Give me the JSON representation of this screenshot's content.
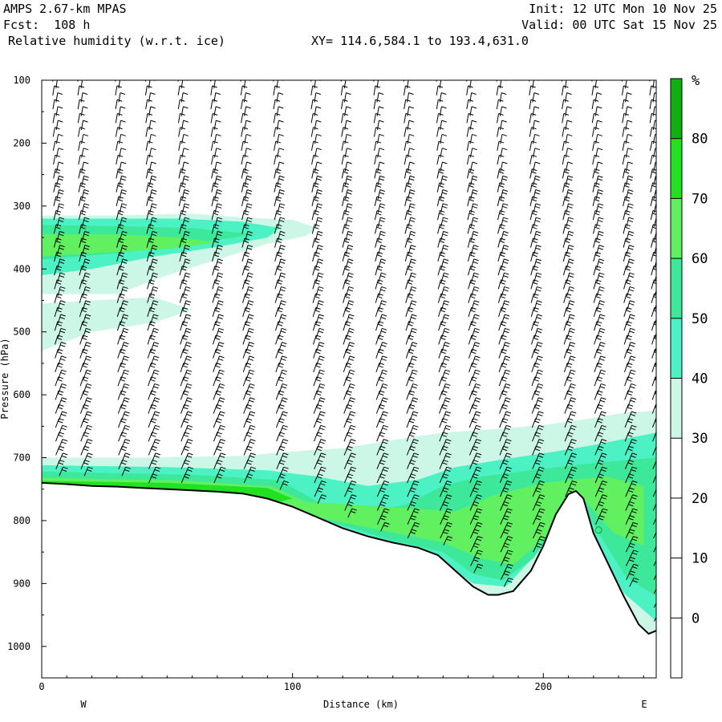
{
  "header": {
    "model": "AMPS 2.67-km MPAS",
    "fcst": "Fcst:  108 h",
    "field": "Relative humidity (w.r.t. ice)",
    "init": "Init: 12 UTC Mon 10 Nov 25",
    "valid": "Valid: 00 UTC Sat 15 Nov 25",
    "xy": "XY= 114.6,584.1 to 193.4,631.0"
  },
  "chart_data": {
    "type": "heatmap",
    "xlabel": "Distance (km)",
    "ylabel": "Pressure (hPa)",
    "xlim": [
      0,
      245
    ],
    "ylim": [
      1050,
      100
    ],
    "x_ticks": [
      0,
      100,
      200
    ],
    "y_ticks": [
      100,
      200,
      300,
      400,
      500,
      600,
      700,
      800,
      900,
      1000
    ],
    "x_end_labels": {
      "left": "W",
      "right": "E"
    },
    "colorbar": {
      "unit": "%",
      "levels": [
        0,
        10,
        20,
        30,
        40,
        50,
        60,
        70,
        80
      ],
      "colors": [
        "#ffffff",
        "#ffffff",
        "#ffffff",
        "#ffffff",
        "#ccf7e6",
        "#4df2c4",
        "#3ee89a",
        "#60f060",
        "#22e022",
        "#10b010"
      ]
    },
    "terrain_surface": [
      [
        0,
        740
      ],
      [
        10,
        742
      ],
      [
        20,
        745
      ],
      [
        30,
        746
      ],
      [
        40,
        748
      ],
      [
        50,
        750
      ],
      [
        60,
        752
      ],
      [
        70,
        754
      ],
      [
        80,
        757
      ],
      [
        90,
        765
      ],
      [
        100,
        778
      ],
      [
        110,
        795
      ],
      [
        120,
        812
      ],
      [
        130,
        825
      ],
      [
        140,
        835
      ],
      [
        150,
        843
      ],
      [
        158,
        855
      ],
      [
        165,
        880
      ],
      [
        172,
        905
      ],
      [
        178,
        918
      ],
      [
        182,
        918
      ],
      [
        188,
        912
      ],
      [
        195,
        880
      ],
      [
        200,
        840
      ],
      [
        205,
        790
      ],
      [
        210,
        758
      ],
      [
        213,
        753
      ],
      [
        216,
        765
      ],
      [
        220,
        820
      ],
      [
        226,
        870
      ],
      [
        232,
        920
      ],
      [
        238,
        965
      ],
      [
        242,
        980
      ],
      [
        245,
        975
      ]
    ],
    "rh_regions": [
      {
        "band": "30-40",
        "points": [
          [
            0,
            315
          ],
          [
            30,
            315
          ],
          [
            60,
            312
          ],
          [
            80,
            318
          ],
          [
            100,
            322
          ],
          [
            110,
            335
          ],
          [
            105,
            348
          ],
          [
            90,
            360
          ],
          [
            70,
            385
          ],
          [
            50,
            410
          ],
          [
            30,
            440
          ],
          [
            0,
            440
          ]
        ]
      },
      {
        "band": "30-40",
        "points": [
          [
            0,
            455
          ],
          [
            20,
            450
          ],
          [
            45,
            445
          ],
          [
            60,
            465
          ],
          [
            45,
            485
          ],
          [
            20,
            500
          ],
          [
            0,
            530
          ]
        ]
      },
      {
        "band": "40-50",
        "points": [
          [
            0,
            320
          ],
          [
            25,
            320
          ],
          [
            55,
            320
          ],
          [
            80,
            325
          ],
          [
            95,
            335
          ],
          [
            90,
            350
          ],
          [
            70,
            365
          ],
          [
            45,
            380
          ],
          [
            20,
            400
          ],
          [
            0,
            410
          ]
        ]
      },
      {
        "band": "50-60",
        "points": [
          [
            0,
            330
          ],
          [
            30,
            332
          ],
          [
            60,
            335
          ],
          [
            85,
            345
          ],
          [
            60,
            360
          ],
          [
            30,
            375
          ],
          [
            0,
            385
          ]
        ]
      },
      {
        "band": "60-70",
        "points": [
          [
            0,
            345
          ],
          [
            30,
            345
          ],
          [
            55,
            350
          ],
          [
            70,
            358
          ],
          [
            50,
            368
          ],
          [
            20,
            375
          ],
          [
            0,
            380
          ]
        ]
      },
      {
        "band": "30-40",
        "points": [
          [
            0,
            700
          ],
          [
            40,
            700
          ],
          [
            80,
            697
          ],
          [
            100,
            690
          ],
          [
            120,
            685
          ],
          [
            140,
            672
          ],
          [
            160,
            660
          ],
          [
            180,
            655
          ],
          [
            200,
            648
          ],
          [
            215,
            640
          ],
          [
            230,
            630
          ],
          [
            245,
            625
          ],
          [
            245,
            975
          ],
          [
            242,
            980
          ],
          [
            238,
            965
          ],
          [
            232,
            920
          ],
          [
            226,
            870
          ],
          [
            220,
            820
          ],
          [
            216,
            765
          ],
          [
            213,
            753
          ],
          [
            210,
            758
          ],
          [
            205,
            790
          ],
          [
            200,
            840
          ],
          [
            195,
            880
          ],
          [
            188,
            912
          ],
          [
            182,
            918
          ],
          [
            178,
            918
          ],
          [
            172,
            905
          ],
          [
            165,
            880
          ],
          [
            158,
            855
          ],
          [
            150,
            843
          ],
          [
            140,
            835
          ],
          [
            130,
            825
          ],
          [
            120,
            812
          ],
          [
            110,
            795
          ],
          [
            100,
            778
          ],
          [
            90,
            765
          ],
          [
            80,
            757
          ],
          [
            70,
            754
          ],
          [
            60,
            752
          ],
          [
            50,
            750
          ],
          [
            40,
            748
          ],
          [
            30,
            746
          ],
          [
            20,
            745
          ],
          [
            10,
            742
          ],
          [
            0,
            740
          ]
        ]
      },
      {
        "band": "40-50",
        "points": [
          [
            0,
            712
          ],
          [
            50,
            715
          ],
          [
            90,
            720
          ],
          [
            110,
            730
          ],
          [
            130,
            745
          ],
          [
            150,
            735
          ],
          [
            165,
            715
          ],
          [
            185,
            702
          ],
          [
            205,
            690
          ],
          [
            220,
            680
          ],
          [
            235,
            668
          ],
          [
            245,
            660
          ],
          [
            245,
            960
          ],
          [
            232,
            915
          ],
          [
            220,
            830
          ],
          [
            214,
            760
          ],
          [
            207,
            790
          ],
          [
            198,
            850
          ],
          [
            185,
            905
          ],
          [
            172,
            900
          ],
          [
            158,
            860
          ],
          [
            140,
            838
          ],
          [
            110,
            797
          ],
          [
            90,
            766
          ],
          [
            50,
            750
          ],
          [
            0,
            741
          ]
        ]
      },
      {
        "band": "50-60",
        "points": [
          [
            0,
            722
          ],
          [
            60,
            727
          ],
          [
            95,
            736
          ],
          [
            110,
            770
          ],
          [
            125,
            790
          ],
          [
            145,
            775
          ],
          [
            160,
            745
          ],
          [
            175,
            730
          ],
          [
            195,
            720
          ],
          [
            212,
            712
          ],
          [
            230,
            705
          ],
          [
            245,
            700
          ],
          [
            245,
            920
          ],
          [
            233,
            890
          ],
          [
            222,
            820
          ],
          [
            214,
            762
          ],
          [
            206,
            800
          ],
          [
            196,
            860
          ],
          [
            184,
            895
          ],
          [
            172,
            885
          ],
          [
            160,
            850
          ],
          [
            140,
            832
          ],
          [
            110,
            796
          ],
          [
            90,
            765
          ],
          [
            50,
            749
          ],
          [
            0,
            741
          ]
        ]
      },
      {
        "band": "60-70",
        "points": [
          [
            0,
            732
          ],
          [
            60,
            737
          ],
          [
            92,
            746
          ],
          [
            105,
            770
          ],
          [
            165,
            785
          ],
          [
            180,
            760
          ],
          [
            200,
            740
          ],
          [
            212,
            735
          ],
          [
            225,
            730
          ],
          [
            240,
            745
          ],
          [
            240,
            840
          ],
          [
            228,
            820
          ],
          [
            217,
            770
          ],
          [
            210,
            775
          ],
          [
            200,
            830
          ],
          [
            188,
            870
          ],
          [
            175,
            860
          ],
          [
            160,
            835
          ],
          [
            110,
            795
          ],
          [
            90,
            764
          ],
          [
            50,
            748
          ],
          [
            0,
            740
          ]
        ]
      },
      {
        "band": "70-80",
        "points": [
          [
            0,
            737
          ],
          [
            50,
            740
          ],
          [
            90,
            748
          ],
          [
            100,
            765
          ],
          [
            95,
            770
          ],
          [
            80,
            757
          ],
          [
            50,
            749
          ],
          [
            0,
            741
          ]
        ]
      }
    ],
    "wind_columns_x": [
      5,
      15,
      30,
      42,
      55,
      68,
      80,
      93,
      108,
      120,
      133,
      145,
      158,
      170,
      182,
      195,
      208,
      220,
      232,
      243
    ],
    "point_marker": [
      222,
      815
    ]
  }
}
